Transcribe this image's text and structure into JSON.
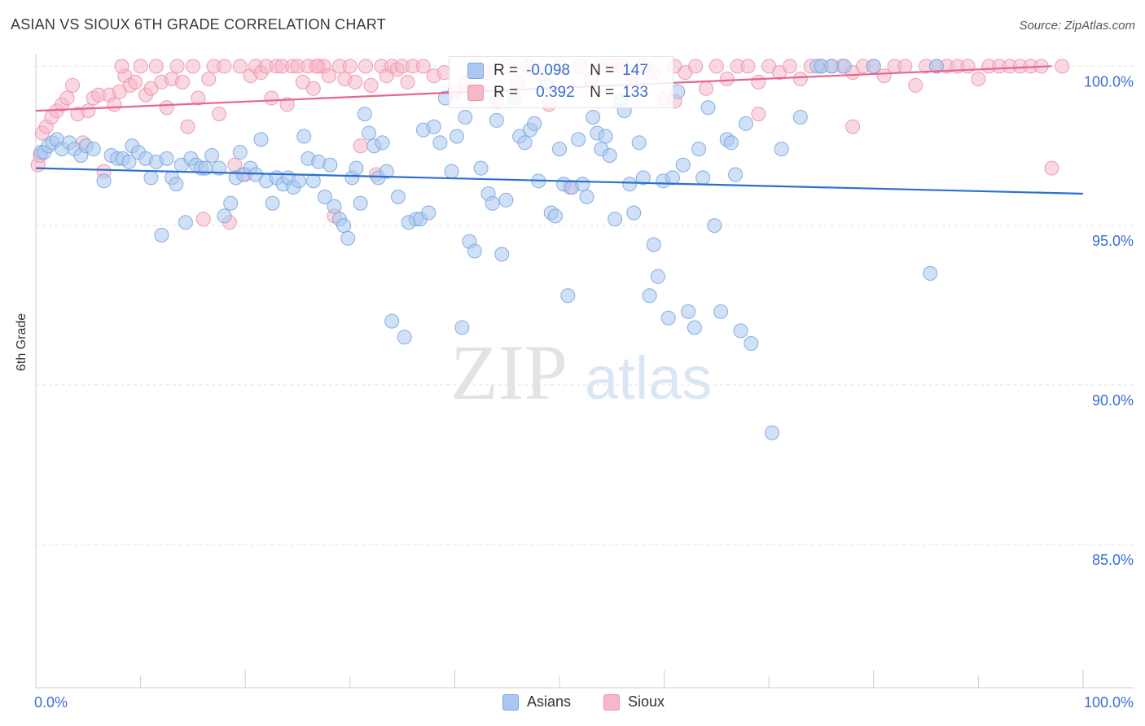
{
  "title": "ASIAN VS SIOUX 6TH GRADE CORRELATION CHART",
  "source": "Source: ZipAtlas.com",
  "watermark": {
    "zip": "ZIP",
    "atlas": "atlas"
  },
  "colors": {
    "asians_fill": "#a9c8f0",
    "asians_stroke": "#7aa6e0",
    "asians_line": "#2a6fd1",
    "sioux_fill": "#f6b8c9",
    "sioux_stroke": "#ee92ac",
    "sioux_line": "#e8648e",
    "axis_label": "#3a6fd0",
    "grid": "#e2e2e2"
  },
  "stats_box": {
    "rows": [
      {
        "series": "Asians",
        "r_label": "R =",
        "r_value": "-0.098",
        "n_label": "N =",
        "n_value": "147"
      },
      {
        "series": "Sioux",
        "r_label": "R =",
        "r_value": "0.392",
        "n_label": "N =",
        "n_value": "133"
      }
    ]
  },
  "legend": [
    {
      "label": "Asians"
    },
    {
      "label": "Sioux"
    }
  ],
  "chart_data": {
    "type": "scatter",
    "title": "ASIAN VS SIOUX 6TH GRADE CORRELATION CHART",
    "xlabel": "",
    "ylabel": "6th Grade",
    "xlim": [
      0,
      100
    ],
    "ylim": [
      80.5,
      100.8
    ],
    "x_tick_labels": [
      "0.0%",
      "100.0%"
    ],
    "y_ticks": [
      85,
      90,
      95,
      100
    ],
    "y_tick_labels": [
      "85.0%",
      "90.0%",
      "95.0%",
      "100.0%"
    ],
    "grid": true,
    "legend_position": "bottom-center",
    "series": [
      {
        "name": "Asians",
        "r": -0.098,
        "n": 147,
        "trend": {
          "x": [
            0,
            100
          ],
          "y": [
            96.8,
            96.0
          ]
        },
        "points": [
          [
            0.5,
            97.3
          ],
          [
            0.8,
            97.3
          ],
          [
            1.2,
            97.5
          ],
          [
            1.6,
            97.6
          ],
          [
            2.0,
            97.7
          ],
          [
            2.5,
            97.4
          ],
          [
            3.2,
            97.6
          ],
          [
            3.7,
            97.4
          ],
          [
            4.3,
            97.2
          ],
          [
            4.8,
            97.5
          ],
          [
            5.5,
            97.4
          ],
          [
            6.5,
            96.4
          ],
          [
            7.2,
            97.2
          ],
          [
            7.8,
            97.1
          ],
          [
            8.3,
            97.1
          ],
          [
            8.9,
            97.0
          ],
          [
            9.2,
            97.5
          ],
          [
            9.8,
            97.3
          ],
          [
            10.5,
            97.1
          ],
          [
            11.0,
            96.5
          ],
          [
            11.5,
            97.0
          ],
          [
            12.0,
            94.7
          ],
          [
            12.5,
            97.1
          ],
          [
            13.0,
            96.5
          ],
          [
            13.4,
            96.3
          ],
          [
            13.9,
            96.9
          ],
          [
            14.3,
            95.1
          ],
          [
            14.8,
            97.1
          ],
          [
            15.3,
            96.9
          ],
          [
            15.8,
            96.8
          ],
          [
            16.2,
            96.8
          ],
          [
            16.8,
            97.2
          ],
          [
            17.5,
            96.8
          ],
          [
            18.0,
            95.3
          ],
          [
            18.6,
            95.7
          ],
          [
            19.1,
            96.5
          ],
          [
            19.5,
            97.3
          ],
          [
            19.8,
            96.6
          ],
          [
            20.5,
            96.8
          ],
          [
            21.0,
            96.6
          ],
          [
            21.5,
            97.7
          ],
          [
            22.0,
            96.4
          ],
          [
            22.6,
            95.7
          ],
          [
            23.0,
            96.5
          ],
          [
            23.6,
            96.3
          ],
          [
            24.1,
            96.5
          ],
          [
            24.6,
            96.2
          ],
          [
            25.1,
            96.4
          ],
          [
            25.6,
            97.8
          ],
          [
            26.0,
            97.1
          ],
          [
            26.5,
            96.4
          ],
          [
            27.0,
            97.0
          ],
          [
            27.6,
            95.9
          ],
          [
            28.1,
            96.9
          ],
          [
            28.5,
            95.6
          ],
          [
            29.0,
            95.2
          ],
          [
            29.4,
            95.0
          ],
          [
            29.8,
            94.6
          ],
          [
            30.2,
            96.5
          ],
          [
            30.6,
            96.8
          ],
          [
            31.0,
            95.7
          ],
          [
            31.4,
            98.5
          ],
          [
            31.8,
            97.9
          ],
          [
            32.3,
            97.5
          ],
          [
            32.7,
            96.5
          ],
          [
            33.1,
            97.6
          ],
          [
            33.5,
            96.7
          ],
          [
            34.0,
            92.0
          ],
          [
            34.6,
            95.9
          ],
          [
            35.2,
            91.5
          ],
          [
            35.6,
            95.1
          ],
          [
            36.3,
            95.2
          ],
          [
            36.7,
            95.2
          ],
          [
            37.0,
            98.0
          ],
          [
            37.5,
            95.4
          ],
          [
            38.0,
            98.1
          ],
          [
            38.6,
            97.6
          ],
          [
            39.1,
            99.0
          ],
          [
            39.7,
            96.7
          ],
          [
            40.2,
            97.8
          ],
          [
            40.7,
            91.8
          ],
          [
            41.0,
            98.4
          ],
          [
            41.4,
            94.5
          ],
          [
            41.9,
            94.2
          ],
          [
            42.5,
            96.8
          ],
          [
            43.2,
            96.0
          ],
          [
            43.6,
            95.7
          ],
          [
            44.0,
            98.3
          ],
          [
            44.5,
            94.1
          ],
          [
            44.9,
            95.8
          ],
          [
            45.7,
            99.0
          ],
          [
            46.2,
            97.8
          ],
          [
            46.7,
            97.6
          ],
          [
            47.2,
            98.0
          ],
          [
            47.6,
            98.2
          ],
          [
            48.0,
            96.4
          ],
          [
            48.8,
            99.4
          ],
          [
            49.2,
            95.4
          ],
          [
            49.6,
            95.3
          ],
          [
            50.0,
            97.4
          ],
          [
            50.4,
            96.3
          ],
          [
            50.8,
            92.8
          ],
          [
            51.2,
            96.2
          ],
          [
            51.8,
            97.7
          ],
          [
            52.2,
            96.3
          ],
          [
            52.6,
            95.9
          ],
          [
            53.2,
            98.4
          ],
          [
            53.6,
            97.9
          ],
          [
            54.0,
            97.4
          ],
          [
            54.4,
            97.8
          ],
          [
            54.8,
            97.2
          ],
          [
            55.3,
            95.2
          ],
          [
            55.8,
            98.9
          ],
          [
            56.2,
            98.6
          ],
          [
            56.7,
            96.3
          ],
          [
            57.1,
            95.4
          ],
          [
            57.6,
            97.6
          ],
          [
            58.0,
            96.5
          ],
          [
            58.6,
            92.8
          ],
          [
            59.0,
            94.4
          ],
          [
            59.4,
            93.4
          ],
          [
            59.9,
            96.4
          ],
          [
            60.4,
            92.1
          ],
          [
            60.8,
            96.5
          ],
          [
            61.3,
            99.2
          ],
          [
            61.8,
            96.9
          ],
          [
            62.3,
            92.3
          ],
          [
            62.9,
            91.8
          ],
          [
            63.3,
            97.4
          ],
          [
            63.7,
            96.5
          ],
          [
            64.2,
            98.7
          ],
          [
            64.8,
            95.0
          ],
          [
            65.4,
            92.3
          ],
          [
            66.0,
            97.7
          ],
          [
            66.4,
            97.6
          ],
          [
            66.8,
            96.6
          ],
          [
            67.3,
            91.7
          ],
          [
            67.8,
            98.2
          ],
          [
            68.3,
            91.3
          ],
          [
            70.3,
            88.5
          ],
          [
            71.2,
            97.4
          ],
          [
            73.0,
            98.4
          ],
          [
            74.6,
            100.0
          ],
          [
            75.0,
            100.0
          ],
          [
            76.0,
            100.0
          ],
          [
            77.2,
            100.0
          ],
          [
            80.0,
            100.0
          ],
          [
            85.4,
            93.5
          ],
          [
            86.0,
            100.0
          ]
        ]
      },
      {
        "name": "Sioux",
        "r": 0.392,
        "n": 133,
        "trend": {
          "x": [
            0,
            97
          ],
          "y": [
            98.6,
            100.0
          ]
        },
        "points": [
          [
            0.2,
            96.9
          ],
          [
            0.6,
            97.9
          ],
          [
            1.0,
            98.1
          ],
          [
            1.5,
            98.4
          ],
          [
            2.0,
            98.6
          ],
          [
            2.5,
            98.8
          ],
          [
            3.0,
            99.0
          ],
          [
            3.5,
            99.4
          ],
          [
            4.0,
            98.5
          ],
          [
            4.5,
            97.6
          ],
          [
            5.0,
            98.6
          ],
          [
            5.5,
            99.0
          ],
          [
            6.0,
            99.1
          ],
          [
            6.5,
            96.7
          ],
          [
            7.0,
            99.1
          ],
          [
            7.5,
            98.8
          ],
          [
            8.0,
            99.2
          ],
          [
            8.5,
            99.7
          ],
          [
            9.0,
            99.4
          ],
          [
            9.5,
            99.5
          ],
          [
            10.0,
            100.0
          ],
          [
            10.5,
            99.1
          ],
          [
            11.0,
            99.3
          ],
          [
            11.5,
            100.0
          ],
          [
            12.0,
            99.5
          ],
          [
            12.5,
            98.7
          ],
          [
            13.0,
            99.6
          ],
          [
            13.5,
            100.0
          ],
          [
            14.0,
            99.5
          ],
          [
            14.5,
            98.1
          ],
          [
            15.0,
            100.0
          ],
          [
            15.5,
            99.0
          ],
          [
            16.0,
            95.2
          ],
          [
            16.5,
            99.6
          ],
          [
            17.0,
            100.0
          ],
          [
            17.5,
            98.5
          ],
          [
            18.0,
            100.0
          ],
          [
            18.5,
            95.1
          ],
          [
            19.0,
            96.9
          ],
          [
            19.5,
            100.0
          ],
          [
            20.0,
            96.6
          ],
          [
            20.5,
            99.7
          ],
          [
            21.0,
            100.0
          ],
          [
            21.5,
            99.8
          ],
          [
            22.0,
            100.0
          ],
          [
            22.5,
            99.0
          ],
          [
            23.0,
            100.0
          ],
          [
            23.5,
            100.0
          ],
          [
            24.0,
            98.8
          ],
          [
            24.5,
            100.0
          ],
          [
            25.0,
            100.0
          ],
          [
            25.5,
            99.5
          ],
          [
            26.0,
            100.0
          ],
          [
            26.5,
            99.3
          ],
          [
            27.0,
            100.0
          ],
          [
            27.5,
            100.0
          ],
          [
            28.0,
            99.7
          ],
          [
            28.5,
            95.3
          ],
          [
            29.0,
            100.0
          ],
          [
            29.5,
            99.6
          ],
          [
            30.0,
            100.0
          ],
          [
            30.5,
            99.5
          ],
          [
            31.0,
            97.5
          ],
          [
            31.5,
            100.0
          ],
          [
            32.0,
            99.4
          ],
          [
            32.5,
            96.6
          ],
          [
            33.0,
            100.0
          ],
          [
            33.5,
            99.7
          ],
          [
            34.0,
            100.0
          ],
          [
            34.5,
            99.9
          ],
          [
            35.0,
            100.0
          ],
          [
            35.5,
            99.5
          ],
          [
            36.0,
            100.0
          ],
          [
            37.0,
            100.0
          ],
          [
            38.0,
            99.7
          ],
          [
            39.0,
            99.8
          ],
          [
            40.0,
            99.2
          ],
          [
            41.0,
            99.5
          ],
          [
            42.0,
            100.0
          ],
          [
            43.0,
            99.8
          ],
          [
            44.0,
            98.9
          ],
          [
            45.0,
            100.0
          ],
          [
            46.0,
            99.5
          ],
          [
            47.0,
            100.0
          ],
          [
            48.0,
            99.8
          ],
          [
            49.0,
            98.8
          ],
          [
            50.0,
            100.0
          ],
          [
            51.0,
            96.2
          ],
          [
            52.0,
            100.0
          ],
          [
            53.0,
            99.6
          ],
          [
            54.0,
            100.0
          ],
          [
            55.0,
            100.0
          ],
          [
            56.0,
            100.0
          ],
          [
            57.0,
            99.7
          ],
          [
            58.0,
            100.0
          ],
          [
            59.0,
            99.8
          ],
          [
            60.0,
            99.0
          ],
          [
            61.0,
            100.0
          ],
          [
            62.0,
            99.8
          ],
          [
            63.0,
            100.0
          ],
          [
            64.0,
            99.3
          ],
          [
            65.0,
            100.0
          ],
          [
            66.0,
            99.6
          ],
          [
            67.0,
            100.0
          ],
          [
            68.0,
            100.0
          ],
          [
            69.0,
            99.5
          ],
          [
            70.0,
            100.0
          ],
          [
            71.0,
            99.8
          ],
          [
            72.0,
            100.0
          ],
          [
            73.0,
            99.6
          ],
          [
            74.0,
            100.0
          ],
          [
            75.0,
            100.0
          ],
          [
            76.0,
            100.0
          ],
          [
            77.0,
            100.0
          ],
          [
            78.0,
            99.8
          ],
          [
            79.0,
            100.0
          ],
          [
            80.0,
            100.0
          ],
          [
            81.0,
            99.7
          ],
          [
            82.0,
            100.0
          ],
          [
            83.0,
            100.0
          ],
          [
            84.0,
            99.4
          ],
          [
            85.0,
            100.0
          ],
          [
            86.0,
            100.0
          ],
          [
            87.0,
            100.0
          ],
          [
            88.0,
            100.0
          ],
          [
            89.0,
            100.0
          ],
          [
            90.0,
            99.6
          ],
          [
            91.0,
            100.0
          ],
          [
            92.0,
            100.0
          ],
          [
            93.0,
            100.0
          ],
          [
            94.0,
            100.0
          ],
          [
            95.0,
            100.0
          ],
          [
            96.0,
            100.0
          ],
          [
            97.0,
            96.8
          ],
          [
            98.0,
            100.0
          ],
          [
            69.0,
            98.5
          ],
          [
            78.0,
            98.1
          ],
          [
            61.0,
            98.9
          ],
          [
            0.4,
            97.2
          ],
          [
            8.2,
            100.0
          ],
          [
            26.8,
            100.0
          ]
        ]
      }
    ]
  }
}
